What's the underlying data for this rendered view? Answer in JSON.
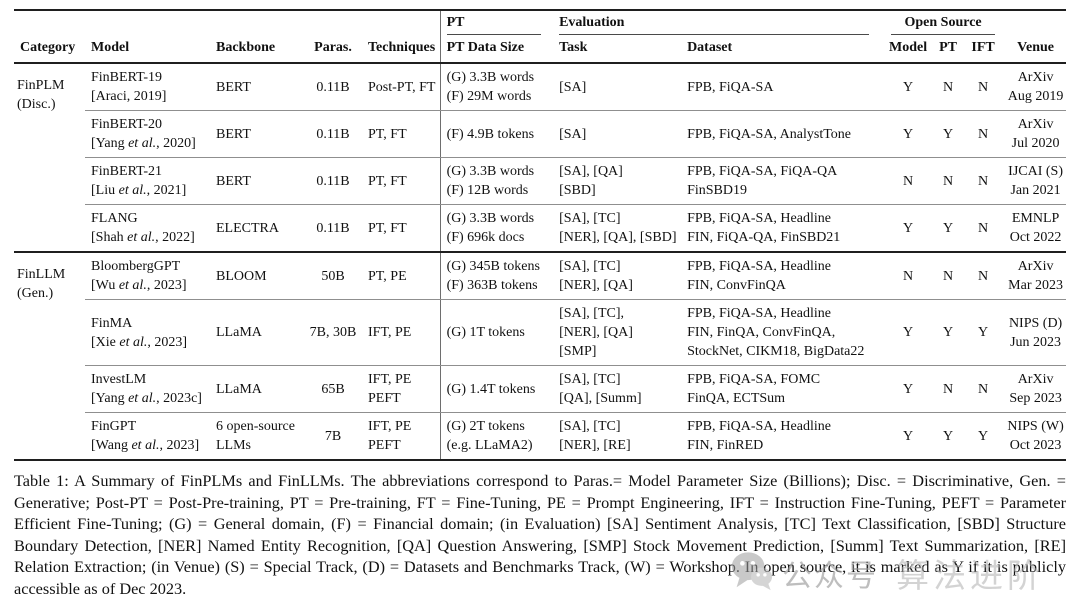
{
  "table": {
    "spanners": {
      "pt": "PT",
      "evaluation": "Evaluation",
      "open_source": "Open Source"
    },
    "headers": {
      "category": "Category",
      "model": "Model",
      "backbone": "Backbone",
      "paras": "Paras.",
      "techniques": "Techniques",
      "pt_data_size": "PT Data Size",
      "task": "Task",
      "dataset": "Dataset",
      "os_model": "Model",
      "os_pt": "PT",
      "os_ift": "IFT",
      "venue": "Venue"
    },
    "groups": [
      {
        "category": [
          "FinPLM",
          "(Disc.)"
        ],
        "rows": [
          0,
          1,
          2,
          3
        ]
      },
      {
        "category": [
          "FinLLM",
          "(Gen.)"
        ],
        "rows": [
          4,
          5,
          6,
          7
        ]
      }
    ],
    "rows": [
      {
        "model_name": "FinBERT-19",
        "cite_pre": "[Araci, 2019]",
        "cite_italic": "",
        "cite_post": "",
        "backbone": [
          "BERT"
        ],
        "paras": "0.11B",
        "techniques": [
          "Post-PT, FT"
        ],
        "pt_data_size": [
          "(G) 3.3B words",
          "(F) 29M words"
        ],
        "task": [
          "[SA]"
        ],
        "dataset": [
          "FPB, FiQA-SA"
        ],
        "os_model": "Y",
        "os_pt": "N",
        "os_ift": "N",
        "venue": [
          "ArXiv",
          "Aug 2019"
        ]
      },
      {
        "model_name": "FinBERT-20",
        "cite_pre": "[Yang ",
        "cite_italic": "et al.",
        "cite_post": ", 2020]",
        "backbone": [
          "BERT"
        ],
        "paras": "0.11B",
        "techniques": [
          "PT, FT"
        ],
        "pt_data_size": [
          "(F) 4.9B tokens"
        ],
        "task": [
          "[SA]"
        ],
        "dataset": [
          "FPB, FiQA-SA, AnalystTone"
        ],
        "os_model": "Y",
        "os_pt": "Y",
        "os_ift": "N",
        "venue": [
          "ArXiv",
          "Jul 2020"
        ]
      },
      {
        "model_name": "FinBERT-21",
        "cite_pre": "[Liu ",
        "cite_italic": "et al.",
        "cite_post": ", 2021]",
        "backbone": [
          "BERT"
        ],
        "paras": "0.11B",
        "techniques": [
          "PT, FT"
        ],
        "pt_data_size": [
          "(G) 3.3B words",
          "(F) 12B words"
        ],
        "task": [
          "[SA], [QA]",
          "[SBD]"
        ],
        "dataset": [
          "FPB, FiQA-SA, FiQA-QA",
          "FinSBD19"
        ],
        "os_model": "N",
        "os_pt": "N",
        "os_ift": "N",
        "venue": [
          "IJCAI (S)",
          "Jan 2021"
        ]
      },
      {
        "model_name": "FLANG",
        "cite_pre": "[Shah ",
        "cite_italic": "et al.",
        "cite_post": ", 2022]",
        "backbone": [
          "ELECTRA"
        ],
        "paras": "0.11B",
        "techniques": [
          "PT, FT"
        ],
        "pt_data_size": [
          "(G) 3.3B words",
          "(F) 696k docs"
        ],
        "task": [
          "[SA], [TC]",
          "[NER], [QA], [SBD]"
        ],
        "dataset": [
          "FPB, FiQA-SA, Headline",
          "FIN, FiQA-QA, FinSBD21"
        ],
        "os_model": "Y",
        "os_pt": "Y",
        "os_ift": "N",
        "venue": [
          "EMNLP",
          "Oct 2022"
        ]
      },
      {
        "model_name": "BloombergGPT",
        "cite_pre": "[Wu ",
        "cite_italic": "et al.",
        "cite_post": ", 2023]",
        "backbone": [
          "BLOOM"
        ],
        "paras": "50B",
        "techniques": [
          "PT, PE"
        ],
        "pt_data_size": [
          "(G) 345B tokens",
          "(F) 363B tokens"
        ],
        "task": [
          "[SA], [TC]",
          "[NER], [QA]"
        ],
        "dataset": [
          "FPB, FiQA-SA, Headline",
          "FIN, ConvFinQA"
        ],
        "os_model": "N",
        "os_pt": "N",
        "os_ift": "N",
        "venue": [
          "ArXiv",
          "Mar 2023"
        ]
      },
      {
        "model_name": "FinMA",
        "cite_pre": "[Xie ",
        "cite_italic": "et al.",
        "cite_post": ", 2023]",
        "backbone": [
          "LLaMA"
        ],
        "paras": "7B, 30B",
        "techniques": [
          "IFT, PE"
        ],
        "pt_data_size": [
          "(G) 1T tokens"
        ],
        "task": [
          "[SA], [TC],",
          "[NER], [QA]",
          "[SMP]"
        ],
        "dataset": [
          "FPB, FiQA-SA, Headline",
          "FIN, FinQA, ConvFinQA,",
          "StockNet, CIKM18, BigData22"
        ],
        "os_model": "Y",
        "os_pt": "Y",
        "os_ift": "Y",
        "venue": [
          "NIPS (D)",
          "Jun 2023"
        ]
      },
      {
        "model_name": "InvestLM",
        "cite_pre": "[Yang ",
        "cite_italic": "et al.",
        "cite_post": ", 2023c]",
        "backbone": [
          "LLaMA"
        ],
        "paras": "65B",
        "techniques": [
          "IFT, PE",
          "PEFT"
        ],
        "pt_data_size": [
          "(G) 1.4T tokens"
        ],
        "task": [
          "[SA], [TC]",
          "[QA], [Summ]"
        ],
        "dataset": [
          "FPB, FiQA-SA, FOMC",
          "FinQA, ECTSum"
        ],
        "os_model": "Y",
        "os_pt": "N",
        "os_ift": "N",
        "venue": [
          "ArXiv",
          "Sep 2023"
        ]
      },
      {
        "model_name": "FinGPT",
        "cite_pre": "[Wang ",
        "cite_italic": "et al.",
        "cite_post": ", 2023]",
        "backbone": [
          "6 open-source",
          "LLMs"
        ],
        "paras": "7B",
        "techniques": [
          "IFT, PE",
          "PEFT"
        ],
        "pt_data_size": [
          "(G) 2T tokens",
          "(e.g. LLaMA2)"
        ],
        "task": [
          "[SA], [TC]",
          "[NER], [RE]"
        ],
        "dataset": [
          "FPB, FiQA-SA, Headline",
          "FIN, FinRED"
        ],
        "os_model": "Y",
        "os_pt": "Y",
        "os_ift": "Y",
        "venue": [
          "NIPS (W)",
          "Oct 2023"
        ]
      }
    ]
  },
  "caption": {
    "text": "Table 1: A Summary of FinPLMs and FinLLMs. The abbreviations correspond to Paras.= Model Parameter Size (Billions); Disc. = Discriminative, Gen. = Generative; Post-PT = Post-Pre-training, PT = Pre-training, FT = Fine-Tuning, PE = Prompt Engineering, IFT = Instruction Fine-Tuning, PEFT = Parameter Efficient Fine-Tuning; (G) = General domain, (F) = Financial domain; (in Evaluation) [SA] Sentiment Analysis, [TC] Text Classification, [SBD] Structure Boundary Detection, [NER] Named Entity Recognition, [QA] Question Answering, [SMP] Stock Movement Prediction, [Summ] Text Summarization, [RE] Relation Extraction; (in Venue) (S) = Special Track, (D) = Datasets and Benchmarks Track, (W) = Workshop. In open source, it is marked as Y if it is publicly accessible as of Dec 2023."
  },
  "watermark": {
    "icon": "wechat-icon",
    "prefix": "公众号",
    "name": "算法进阶"
  }
}
